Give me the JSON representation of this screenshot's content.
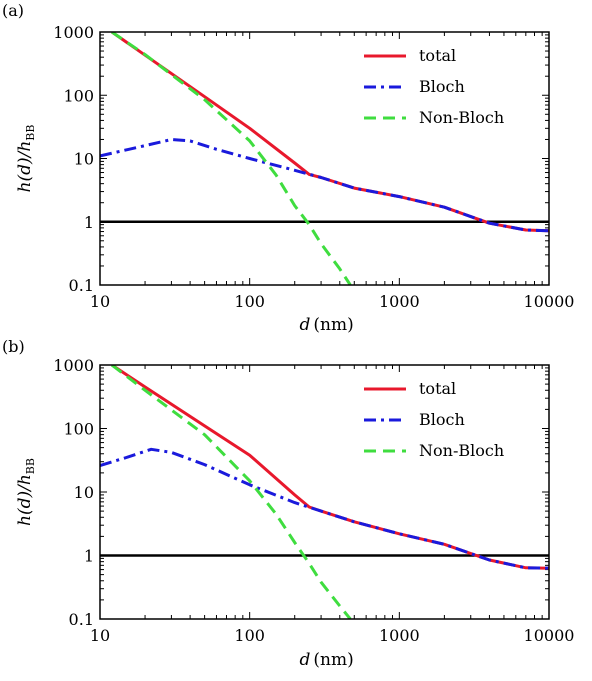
{
  "chart_data": [
    {
      "panel_label": "(a)",
      "type": "line",
      "x_scale": "log",
      "y_scale": "log",
      "xlim": [
        10,
        10000
      ],
      "ylim": [
        0.1,
        1000
      ],
      "xticks": [
        "10",
        "100",
        "1000",
        "10000"
      ],
      "yticks": [
        "1000",
        "100",
        "10",
        "1",
        "0.1"
      ],
      "xlabel": "d (nm)",
      "ylabel": "h(d)/h_BB",
      "legend_position": "top-right",
      "reference_line_y": 1,
      "series": [
        {
          "name": "total",
          "color": "#e8182c",
          "style": "solid",
          "x": [
            12,
            20,
            50,
            100,
            200,
            250,
            300,
            500,
            1000,
            2000,
            4000,
            7000,
            10000
          ],
          "y": [
            1000,
            430,
            95,
            30,
            8.5,
            5.6,
            5.0,
            3.4,
            2.5,
            1.7,
            0.95,
            0.74,
            0.72
          ]
        },
        {
          "name": "Bloch",
          "color": "#1a1adc",
          "style": "dashdot",
          "x": [
            10,
            20,
            30,
            40,
            60,
            100,
            200,
            300,
            500,
            1000,
            2000,
            4000,
            7000,
            10000
          ],
          "y": [
            11,
            16,
            20,
            19,
            14,
            10,
            6.5,
            5.0,
            3.4,
            2.5,
            1.7,
            0.95,
            0.74,
            0.72
          ]
        },
        {
          "name": "Non-Bloch",
          "color": "#3fdd3f",
          "style": "dashed",
          "x": [
            12,
            20,
            50,
            100,
            150,
            200,
            250,
            300,
            400,
            470
          ],
          "y": [
            1000,
            440,
            85,
            19,
            5.5,
            1.8,
            0.9,
            0.45,
            0.18,
            0.1
          ]
        }
      ]
    },
    {
      "panel_label": "(b)",
      "type": "line",
      "x_scale": "log",
      "y_scale": "log",
      "xlim": [
        10,
        10000
      ],
      "ylim": [
        0.1,
        1000
      ],
      "xticks": [
        "10",
        "100",
        "1000",
        "10000"
      ],
      "yticks": [
        "1000",
        "100",
        "10",
        "1",
        "0.1"
      ],
      "xlabel": "d (nm)",
      "ylabel": "h(d)/h_BB",
      "legend_position": "top-right",
      "reference_line_y": 1,
      "series": [
        {
          "name": "total",
          "color": "#e8182c",
          "style": "solid",
          "x": [
            12,
            20,
            50,
            100,
            200,
            250,
            300,
            500,
            1000,
            2000,
            4000,
            7000,
            10000
          ],
          "y": [
            1000,
            450,
            110,
            38,
            9,
            5.8,
            5.0,
            3.4,
            2.2,
            1.5,
            0.85,
            0.64,
            0.63
          ]
        },
        {
          "name": "Bloch",
          "color": "#1a1adc",
          "style": "dashdot",
          "x": [
            10,
            15,
            22,
            30,
            50,
            100,
            200,
            300,
            500,
            1000,
            2000,
            4000,
            7000,
            10000
          ],
          "y": [
            26,
            35,
            47,
            42,
            27,
            13,
            6.8,
            5.0,
            3.4,
            2.2,
            1.5,
            0.85,
            0.64,
            0.63
          ]
        },
        {
          "name": "Non-Bloch",
          "color": "#3fdd3f",
          "style": "dashed",
          "x": [
            12,
            20,
            50,
            100,
            150,
            200,
            250,
            300,
            400,
            470
          ],
          "y": [
            1000,
            400,
            80,
            15,
            4.5,
            1.6,
            0.75,
            0.38,
            0.16,
            0.1
          ]
        }
      ]
    }
  ]
}
